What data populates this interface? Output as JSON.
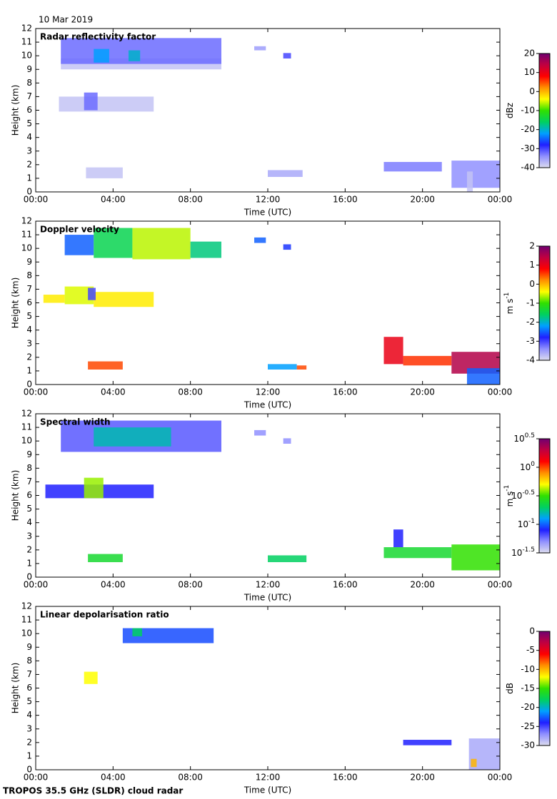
{
  "date": "10 Mar 2019",
  "footer": "TROPOS 35.5 GHz (SLDR) cloud radar",
  "colormap": [
    "#dcdcee",
    "#9090ff",
    "#2020ff",
    "#00a0ff",
    "#00d060",
    "#30e000",
    "#ffff00",
    "#ff9000",
    "#ff0000",
    "#c00040",
    "#700070"
  ],
  "chart_data": [
    {
      "type": "heatmap",
      "title": "Radar reflectivity factor",
      "xlabel": "Time (UTC)",
      "ylabel": "Height (km)",
      "colorbar_label": "dBz",
      "xlim": [
        0,
        24
      ],
      "ylim": [
        0,
        12
      ],
      "xticks": [
        {
          "value": 0,
          "label": "00:00"
        },
        {
          "value": 4,
          "label": "04:00"
        },
        {
          "value": 8,
          "label": "08:00"
        },
        {
          "value": 12,
          "label": "12:00"
        },
        {
          "value": 16,
          "label": "16:00"
        },
        {
          "value": 20,
          "label": "20:00"
        },
        {
          "value": 24,
          "label": "00:00"
        }
      ],
      "yticks": [
        0,
        1,
        2,
        3,
        4,
        5,
        6,
        7,
        8,
        9,
        10,
        11,
        12
      ],
      "clim": [
        -40,
        20
      ],
      "cticks": [
        -40,
        -30,
        -20,
        -10,
        0,
        10,
        20
      ],
      "cells": [
        {
          "x": [
            1.3,
            9.6
          ],
          "y": [
            9.0,
            9.8
          ],
          "value": -38
        },
        {
          "x": [
            1.3,
            9.6
          ],
          "y": [
            9.4,
            11.3
          ],
          "value": -32
        },
        {
          "x": [
            3.0,
            3.8
          ],
          "y": [
            9.5,
            10.5
          ],
          "value": -22
        },
        {
          "x": [
            4.8,
            5.4
          ],
          "y": [
            9.6,
            10.4
          ],
          "value": -20
        },
        {
          "x": [
            1.2,
            6.1
          ],
          "y": [
            5.9,
            7.0
          ],
          "value": -38
        },
        {
          "x": [
            2.5,
            3.2
          ],
          "y": [
            6.0,
            7.3
          ],
          "value": -32
        },
        {
          "x": [
            11.3,
            11.9
          ],
          "y": [
            10.4,
            10.7
          ],
          "value": -35
        },
        {
          "x": [
            12.8,
            13.2
          ],
          "y": [
            9.8,
            10.2
          ],
          "value": -30
        },
        {
          "x": [
            2.6,
            4.5
          ],
          "y": [
            1.0,
            1.8
          ],
          "value": -38
        },
        {
          "x": [
            12.0,
            13.8
          ],
          "y": [
            1.1,
            1.6
          ],
          "value": -36
        },
        {
          "x": [
            18.0,
            21.0
          ],
          "y": [
            1.5,
            2.2
          ],
          "value": -33
        },
        {
          "x": [
            21.5,
            24.0
          ],
          "y": [
            0.3,
            2.3
          ],
          "value": -34
        },
        {
          "x": [
            22.3,
            22.6
          ],
          "y": [
            0.0,
            1.5
          ],
          "value": -38
        }
      ]
    },
    {
      "type": "heatmap",
      "title": "Doppler velocity",
      "xlabel": "Time (UTC)",
      "ylabel": "Height (km)",
      "colorbar_label": "m s",
      "colorbar_label_sup": "-1",
      "xlim": [
        0,
        24
      ],
      "ylim": [
        0,
        12
      ],
      "xticks": [
        {
          "value": 0,
          "label": "00:00"
        },
        {
          "value": 4,
          "label": "04:00"
        },
        {
          "value": 8,
          "label": "08:00"
        },
        {
          "value": 12,
          "label": "12:00"
        },
        {
          "value": 16,
          "label": "16:00"
        },
        {
          "value": 20,
          "label": "20:00"
        },
        {
          "value": 24,
          "label": "00:00"
        }
      ],
      "yticks": [
        0,
        1,
        2,
        3,
        4,
        5,
        6,
        7,
        8,
        9,
        10,
        11,
        12
      ],
      "clim": [
        -4,
        2
      ],
      "cticks": [
        -4,
        -3,
        -2,
        -1,
        0,
        1,
        2
      ],
      "cells": [
        {
          "x": [
            1.5,
            3.0
          ],
          "y": [
            9.5,
            11.0
          ],
          "value": -2.5
        },
        {
          "x": [
            3.0,
            5.0
          ],
          "y": [
            9.3,
            11.5
          ],
          "value": -1.5
        },
        {
          "x": [
            5.0,
            8.0
          ],
          "y": [
            9.2,
            11.5
          ],
          "value": -0.6
        },
        {
          "x": [
            8.0,
            9.6
          ],
          "y": [
            9.3,
            10.5
          ],
          "value": -1.7
        },
        {
          "x": [
            11.3,
            11.9
          ],
          "y": [
            10.4,
            10.8
          ],
          "value": -2.5
        },
        {
          "x": [
            12.8,
            13.2
          ],
          "y": [
            9.9,
            10.3
          ],
          "value": -2.7
        },
        {
          "x": [
            0.4,
            1.5
          ],
          "y": [
            6.0,
            6.6
          ],
          "value": -0.3
        },
        {
          "x": [
            1.5,
            3.0
          ],
          "y": [
            5.9,
            7.2
          ],
          "value": -0.5
        },
        {
          "x": [
            3.0,
            6.1
          ],
          "y": [
            5.7,
            6.8
          ],
          "value": -0.3
        },
        {
          "x": [
            2.7,
            3.1
          ],
          "y": [
            6.2,
            7.1
          ],
          "value": -3
        },
        {
          "x": [
            2.7,
            4.5
          ],
          "y": [
            1.1,
            1.7
          ],
          "value": 0.5
        },
        {
          "x": [
            12.0,
            13.5
          ],
          "y": [
            1.1,
            1.5
          ],
          "value": -2.2
        },
        {
          "x": [
            13.5,
            14.0
          ],
          "y": [
            1.1,
            1.4
          ],
          "value": 0.5
        },
        {
          "x": [
            18.0,
            19.0
          ],
          "y": [
            1.5,
            3.5
          ],
          "value": 1
        },
        {
          "x": [
            19.0,
            21.5
          ],
          "y": [
            1.4,
            2.1
          ],
          "value": 0.6
        },
        {
          "x": [
            21.5,
            24.0
          ],
          "y": [
            0.8,
            2.4
          ],
          "value": 1.5
        },
        {
          "x": [
            22.3,
            24.0
          ],
          "y": [
            0.0,
            1.2
          ],
          "value": -2.5
        }
      ]
    },
    {
      "type": "heatmap",
      "title": "Spectral width",
      "xlabel": "Time (UTC)",
      "ylabel": "Height (km)",
      "colorbar_label": "m s",
      "colorbar_label_sup": "-1",
      "xlim": [
        0,
        24
      ],
      "ylim": [
        0,
        12
      ],
      "xticks": [
        {
          "value": 0,
          "label": "00:00"
        },
        {
          "value": 4,
          "label": "04:00"
        },
        {
          "value": 8,
          "label": "08:00"
        },
        {
          "value": 12,
          "label": "12:00"
        },
        {
          "value": 16,
          "label": "16:00"
        },
        {
          "value": 20,
          "label": "20:00"
        },
        {
          "value": 24,
          "label": "00:00"
        }
      ],
      "yticks": [
        0,
        1,
        2,
        3,
        4,
        5,
        6,
        7,
        8,
        9,
        10,
        11,
        12
      ],
      "log_scale": true,
      "clim": [
        -1.5,
        0.5
      ],
      "cticks": [
        {
          "value": -1.5,
          "label": "10",
          "sup": "-1.5"
        },
        {
          "value": -1,
          "label": "10",
          "sup": "-1"
        },
        {
          "value": -0.5,
          "label": "10",
          "sup": "-0.5"
        },
        {
          "value": 0,
          "label": "10",
          "sup": "0"
        },
        {
          "value": 0.5,
          "label": "10",
          "sup": "0.5"
        }
      ],
      "cells": [
        {
          "x": [
            1.3,
            9.6
          ],
          "y": [
            9.2,
            11.5
          ],
          "value": -1.2
        },
        {
          "x": [
            3.0,
            7.0
          ],
          "y": [
            9.6,
            11.0
          ],
          "value": -0.8
        },
        {
          "x": [
            0.5,
            6.1
          ],
          "y": [
            5.8,
            6.8
          ],
          "value": -1.1
        },
        {
          "x": [
            2.5,
            3.5
          ],
          "y": [
            5.8,
            7.3
          ],
          "value": -0.4
        },
        {
          "x": [
            11.3,
            11.9
          ],
          "y": [
            10.4,
            10.8
          ],
          "value": -1.3
        },
        {
          "x": [
            12.8,
            13.2
          ],
          "y": [
            9.8,
            10.2
          ],
          "value": -1.3
        },
        {
          "x": [
            2.7,
            4.5
          ],
          "y": [
            1.1,
            1.7
          ],
          "value": -0.6
        },
        {
          "x": [
            12.0,
            14.0
          ],
          "y": [
            1.1,
            1.6
          ],
          "value": -0.7
        },
        {
          "x": [
            18.0,
            21.5
          ],
          "y": [
            1.4,
            2.2
          ],
          "value": -0.6
        },
        {
          "x": [
            18.5,
            19.0
          ],
          "y": [
            2.2,
            3.5
          ],
          "value": -1.1
        },
        {
          "x": [
            21.5,
            24.0
          ],
          "y": [
            0.5,
            2.4
          ],
          "value": -0.5
        }
      ]
    },
    {
      "type": "heatmap",
      "title": "Linear depolarisation ratio",
      "xlabel": "Time (UTC)",
      "ylabel": "Height (km)",
      "colorbar_label": "dB",
      "xlim": [
        0,
        24
      ],
      "ylim": [
        0,
        12
      ],
      "xticks": [
        {
          "value": 0,
          "label": "00:00"
        },
        {
          "value": 4,
          "label": "04:00"
        },
        {
          "value": 8,
          "label": "08:00"
        },
        {
          "value": 12,
          "label": "12:00"
        },
        {
          "value": 16,
          "label": "16:00"
        },
        {
          "value": 20,
          "label": "20:00"
        },
        {
          "value": 24,
          "label": "00:00"
        }
      ],
      "yticks": [
        0,
        1,
        2,
        3,
        4,
        5,
        6,
        7,
        8,
        9,
        10,
        11,
        12
      ],
      "clim": [
        -30,
        0
      ],
      "cticks": [
        -30,
        -25,
        -20,
        -15,
        -10,
        -5,
        0
      ],
      "cells": [
        {
          "x": [
            4.5,
            9.2
          ],
          "y": [
            9.3,
            10.4
          ],
          "value": -23
        },
        {
          "x": [
            5.0,
            5.5
          ],
          "y": [
            9.8,
            10.4
          ],
          "value": -18
        },
        {
          "x": [
            2.5,
            3.2
          ],
          "y": [
            6.3,
            7.2
          ],
          "value": -12
        },
        {
          "x": [
            19.0,
            21.5
          ],
          "y": [
            1.8,
            2.2
          ],
          "value": -24
        },
        {
          "x": [
            22.4,
            24.0
          ],
          "y": [
            0.0,
            2.3
          ],
          "value": -28
        },
        {
          "x": [
            22.5,
            22.8
          ],
          "y": [
            0.2,
            0.8
          ],
          "value": -10
        }
      ]
    }
  ]
}
